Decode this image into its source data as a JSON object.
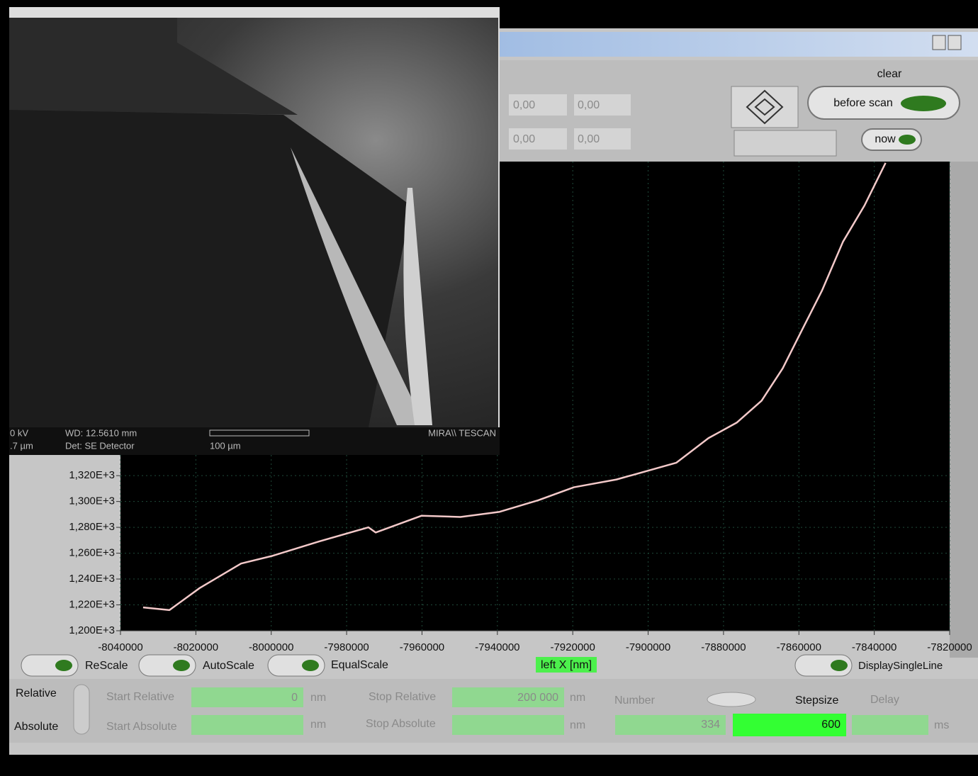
{
  "ui": {
    "clear_label": "clear",
    "before_scan": "before scan",
    "now": "now",
    "fields_top": [
      "0,00",
      "0,00",
      "0,00",
      "0,00"
    ],
    "buttons": [
      "ReScale",
      "AutoScale",
      "EqualScale",
      "DisplaySingleLine"
    ],
    "mode": [
      "Relative",
      "Absolute"
    ],
    "start_relative": {
      "label": "Start Relative",
      "value": "0",
      "unit": "nm"
    },
    "stop_relative": {
      "label": "Stop Relative",
      "value": "200 000",
      "unit": "nm"
    },
    "start_absolute": {
      "label": "Start Absolute",
      "unit": "nm"
    },
    "stop_absolute": {
      "label": "Stop Absolute",
      "unit": "nm"
    },
    "number": {
      "label": "Number",
      "value": "334"
    },
    "stepsize": {
      "label": "Stepsize",
      "value": "600"
    },
    "delay": {
      "label": "Delay",
      "unit": "ms"
    }
  },
  "sem_image": {
    "info": [
      "0 kV",
      "WD: 12.5610 mm",
      ".7 µm",
      "Det: SE Detector",
      "100 µm",
      "MIRA\\\\ TESCAN"
    ]
  },
  "chart_data": {
    "type": "line",
    "x_label": "left X [nm]",
    "x": [
      -8034000,
      -8027000,
      -8019000,
      -8008000,
      -7999600,
      -7987400,
      -7974200,
      -7972300,
      -7960100,
      -7949800,
      -7939400,
      -7929100,
      -7919700,
      -7908400,
      -7892500,
      -7884000,
      -7876500,
      -7869900,
      -7864300,
      -7858600,
      -7853900,
      -7848300,
      -7842600,
      -7837000
    ],
    "values": [
      1218,
      1216,
      1233,
      1252,
      1258,
      1269,
      1280,
      1276,
      1289,
      1288,
      1292,
      1301,
      1311,
      1317,
      1330,
      1349,
      1361,
      1378,
      1403,
      1436,
      1463,
      1501,
      1529,
      1562
    ],
    "color": "#f3c9c9",
    "xlim": [
      -8040000,
      -7820000
    ],
    "ylim": [
      1200,
      1563
    ],
    "xticks": [
      -8040000,
      -8020000,
      -8000000,
      -7980000,
      -7960000,
      -7940000,
      -7920000,
      -7900000,
      -7880000,
      -7860000,
      -7840000,
      -7820000
    ],
    "yticks": [
      {
        "value": 1200,
        "label": "1,200E+3"
      },
      {
        "value": 1220,
        "label": "1,220E+3"
      },
      {
        "value": 1240,
        "label": "1,240E+3"
      },
      {
        "value": 1260,
        "label": "1,260E+3"
      },
      {
        "value": 1280,
        "label": "1,280E+3"
      },
      {
        "value": 1300,
        "label": "1,300E+3"
      },
      {
        "value": 1320,
        "label": "1,320E+3"
      }
    ],
    "grid": true
  }
}
